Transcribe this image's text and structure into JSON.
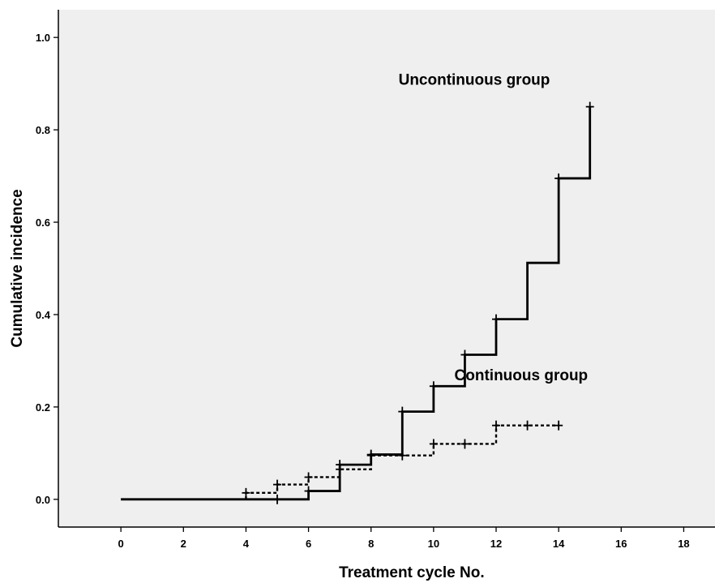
{
  "chart_data": {
    "type": "line",
    "subtype": "step",
    "title": "",
    "xlabel": "Treatment cycle No.",
    "ylabel": "Cumulative incidence",
    "xlim": [
      -2,
      19
    ],
    "ylim": [
      -0.06,
      1.06
    ],
    "xticks": [
      0,
      2,
      4,
      6,
      8,
      10,
      12,
      14,
      16,
      18
    ],
    "xtick_labels": [
      "0",
      "2",
      "4",
      "6",
      "8",
      "10",
      "12",
      "14",
      "16",
      "18"
    ],
    "yticks": [
      0.0,
      0.2,
      0.4,
      0.6,
      0.8,
      1.0
    ],
    "ytick_labels": [
      "0.0",
      "0.2",
      "0.4",
      "0.6",
      "0.8",
      "1.0"
    ],
    "grid": false,
    "background": "#efefef",
    "series": [
      {
        "style": "solid",
        "color": "#000000",
        "x": [
          0,
          6,
          7,
          8,
          9,
          10,
          11,
          12,
          13,
          14,
          15
        ],
        "y": [
          0.0,
          0.018,
          0.075,
          0.097,
          0.19,
          0.245,
          0.313,
          0.39,
          0.512,
          0.695,
          0.85
        ],
        "censor_x": [
          5,
          6,
          7,
          8,
          9,
          10,
          11,
          12,
          14,
          15
        ],
        "censor_y": [
          0.0,
          0.018,
          0.075,
          0.097,
          0.19,
          0.245,
          0.313,
          0.39,
          0.695,
          0.85
        ]
      },
      {
        "style": "dashed",
        "color": "#000000",
        "x": [
          0,
          4,
          5,
          6,
          7,
          8,
          10,
          12
        ],
        "y": [
          0.0,
          0.014,
          0.032,
          0.048,
          0.065,
          0.095,
          0.12,
          0.16
        ],
        "end_x": 14,
        "censor_x": [
          4,
          5,
          6,
          7,
          8,
          9,
          10,
          11,
          12,
          13,
          14
        ],
        "censor_y": [
          0.014,
          0.032,
          0.048,
          0.065,
          0.095,
          0.095,
          0.12,
          0.12,
          0.16,
          0.16,
          0.16
        ]
      }
    ],
    "annotations": [
      {
        "text": "Uncontinuous group",
        "x": 11.3,
        "y": 0.91
      },
      {
        "text": "Continuous group",
        "x": 12.8,
        "y": 0.27
      }
    ]
  }
}
